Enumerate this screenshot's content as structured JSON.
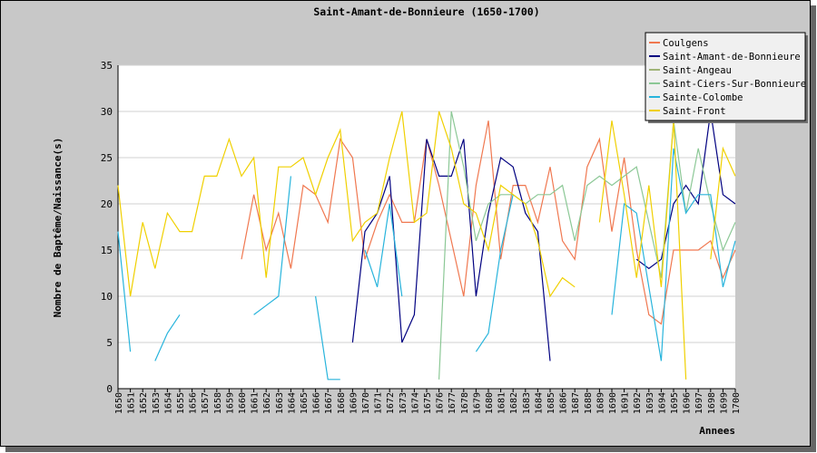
{
  "chart_data": {
    "type": "line",
    "title": "Saint-Amant-de-Bonnieure (1650-1700)",
    "xlabel": "Annees",
    "ylabel": "Nombre de Baptême/Naissance(s)",
    "ylim": [
      0,
      35
    ],
    "yticks": [
      0,
      5,
      10,
      15,
      20,
      25,
      30,
      35
    ],
    "grid": "horizontal",
    "legend": "top-right",
    "x": [
      1650,
      1651,
      1652,
      1653,
      1654,
      1655,
      1656,
      1657,
      1658,
      1659,
      1660,
      1661,
      1662,
      1663,
      1664,
      1665,
      1666,
      1667,
      1668,
      1669,
      1670,
      1671,
      1672,
      1673,
      1674,
      1675,
      1676,
      1677,
      1678,
      1679,
      1680,
      1681,
      1682,
      1683,
      1684,
      1685,
      1686,
      1687,
      1688,
      1689,
      1690,
      1691,
      1692,
      1693,
      1694,
      1695,
      1696,
      1697,
      1698,
      1699,
      1700
    ],
    "series": [
      {
        "name": "Coulgens",
        "color": "#f07850",
        "values": [
          null,
          null,
          null,
          null,
          null,
          null,
          null,
          null,
          null,
          null,
          14,
          21,
          15,
          19,
          13,
          22,
          21,
          18,
          27,
          25,
          14,
          18,
          21,
          18,
          18,
          27,
          22,
          16,
          10,
          22,
          29,
          14,
          22,
          22,
          18,
          24,
          16,
          14,
          24,
          27,
          17,
          25,
          15,
          8,
          7,
          15,
          15,
          15,
          16,
          12,
          15
        ]
      },
      {
        "name": "Saint-Amant-de-Bonnieure",
        "color": "#000080",
        "values": [
          null,
          null,
          null,
          null,
          null,
          null,
          null,
          null,
          null,
          null,
          null,
          null,
          null,
          null,
          null,
          null,
          null,
          null,
          null,
          5,
          17,
          19,
          23,
          5,
          8,
          27,
          23,
          23,
          27,
          10,
          19,
          25,
          24,
          19,
          17,
          3,
          null,
          null,
          null,
          null,
          null,
          null,
          14,
          13,
          14,
          20,
          22,
          20,
          30,
          21,
          20
        ]
      },
      {
        "name": "Saint-Angeau",
        "color": "#a0b478",
        "values": [
          null,
          null,
          null,
          null,
          null,
          null,
          null,
          null,
          null,
          null,
          null,
          null,
          null,
          null,
          null,
          null,
          null,
          null,
          null,
          null,
          null,
          null,
          null,
          null,
          null,
          null,
          null,
          null,
          null,
          null,
          null,
          null,
          null,
          null,
          null,
          null,
          null,
          null,
          null,
          null,
          null,
          null,
          null,
          null,
          null,
          null,
          null,
          null,
          14,
          null,
          null
        ]
      },
      {
        "name": "Saint-Ciers-Sur-Bonnieure",
        "color": "#8cc896",
        "values": [
          null,
          null,
          null,
          null,
          null,
          null,
          null,
          null,
          null,
          null,
          null,
          null,
          null,
          null,
          null,
          null,
          null,
          null,
          null,
          null,
          null,
          null,
          null,
          null,
          null,
          null,
          1,
          30,
          24,
          16,
          20,
          21,
          21,
          20,
          21,
          21,
          22,
          16,
          22,
          23,
          22,
          23,
          24,
          18,
          12,
          29,
          19,
          26,
          20,
          15,
          18
        ]
      },
      {
        "name": "Sainte-Colombe",
        "color": "#28b4dc",
        "values": [
          17,
          4,
          null,
          3,
          6,
          8,
          null,
          null,
          null,
          null,
          null,
          8,
          9,
          10,
          23,
          null,
          10,
          1,
          1,
          null,
          15,
          11,
          20,
          10,
          null,
          null,
          null,
          null,
          null,
          4,
          6,
          15,
          21,
          null,
          null,
          null,
          null,
          null,
          null,
          null,
          8,
          20,
          19,
          11,
          3,
          26,
          19,
          21,
          21,
          11,
          16
        ]
      },
      {
        "name": "Saint-Front",
        "color": "#f0d000",
        "values": [
          22,
          10,
          18,
          13,
          19,
          17,
          17,
          23,
          23,
          27,
          23,
          25,
          12,
          24,
          24,
          25,
          21,
          25,
          28,
          16,
          18,
          19,
          25,
          30,
          18,
          19,
          30,
          26,
          20,
          19,
          15,
          22,
          21,
          20,
          16,
          10,
          12,
          11,
          null,
          18,
          29,
          21,
          12,
          22,
          11,
          29,
          1,
          null,
          14,
          26,
          23
        ]
      }
    ]
  }
}
